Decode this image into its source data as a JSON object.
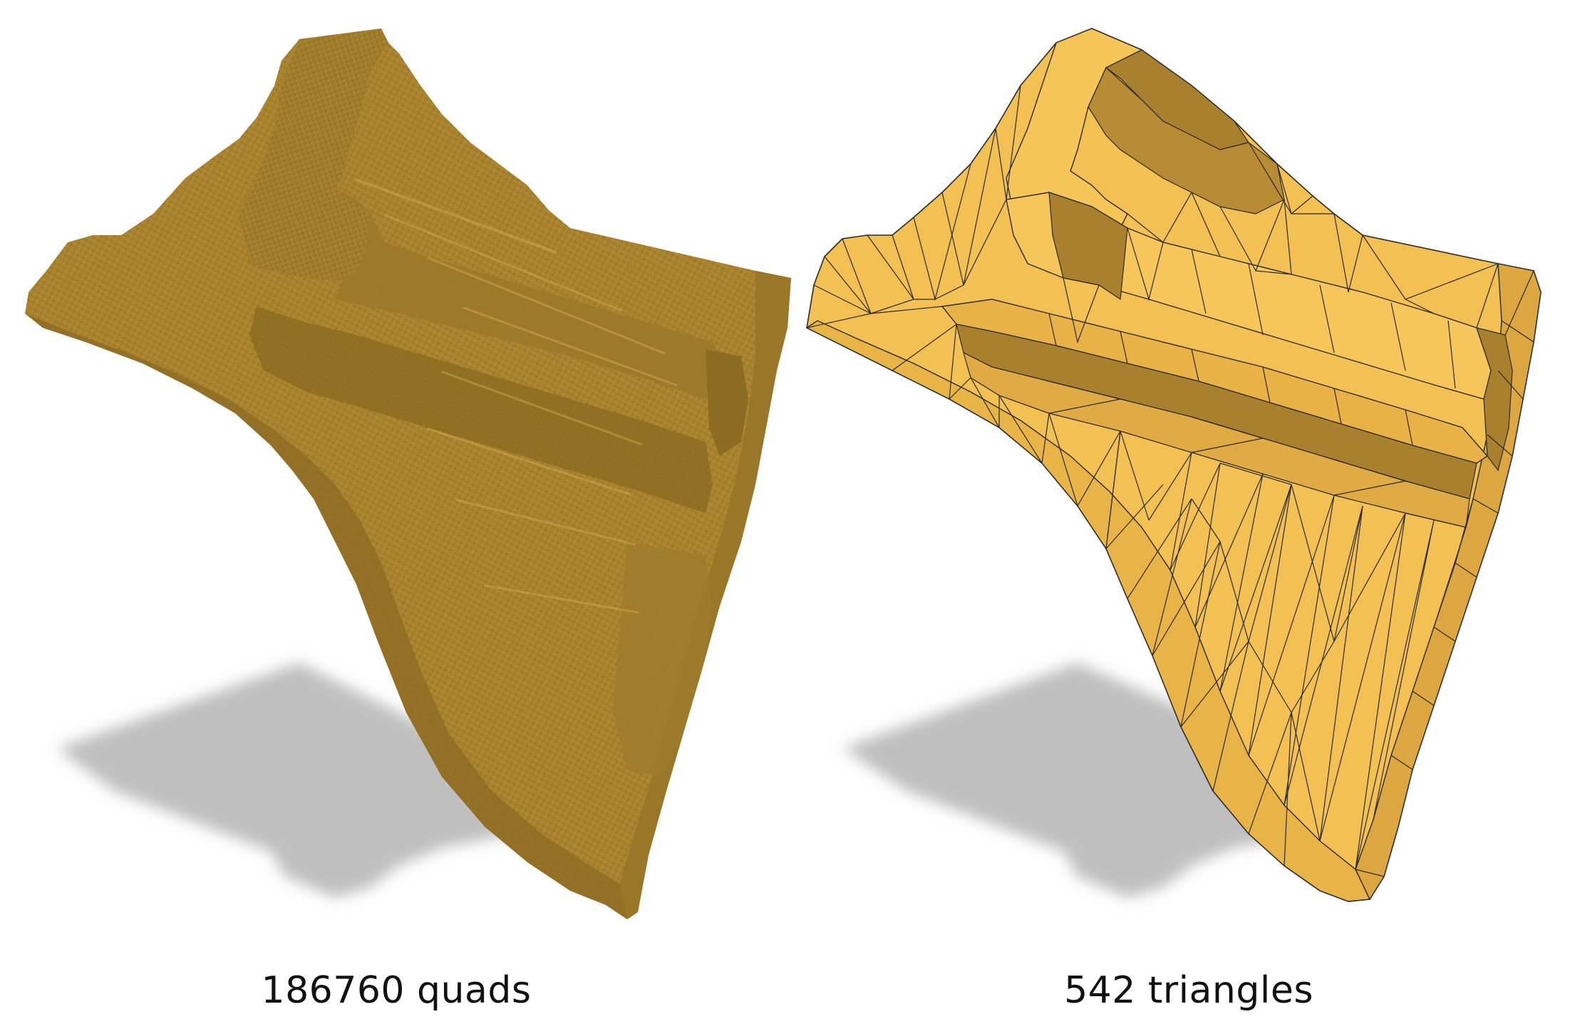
{
  "panels": [
    {
      "caption": "186760 quads",
      "rendering": "voxel-mesh",
      "colors": {
        "body": "#A8822E",
        "light": "#B68E35",
        "dark": "#957227",
        "shadow": "#BFBFBF"
      }
    },
    {
      "caption": "542 triangles",
      "rendering": "triangle-mesh",
      "colors": {
        "body": "#F2C053",
        "light": "#F6C65A",
        "dark": "#A8802E",
        "edge": "#2A2A2A",
        "shadow": "#BFBFBF"
      }
    }
  ]
}
